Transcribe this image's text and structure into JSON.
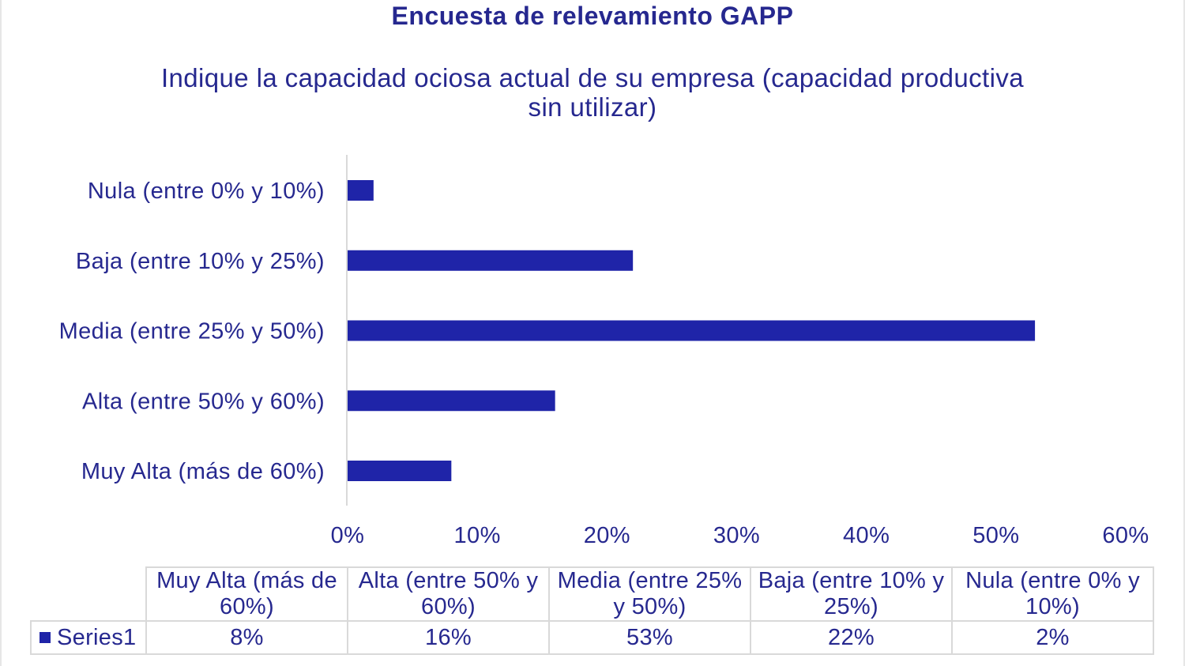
{
  "colors": {
    "accent": "#26288f",
    "bar": "#1f24a8",
    "grid": "#d9d9d9"
  },
  "chart_data": {
    "type": "bar",
    "orientation": "horizontal",
    "title": "Encuesta de relevamiento GAPP",
    "subtitle": "Indique la capacidad ociosa actual de su empresa (capacidad productiva sin utilizar)",
    "categories": [
      "Nula (entre 0% y 10%)",
      "Baja (entre 10% y 25%)",
      "Media (entre 25% y 50%)",
      "Alta (entre 50% y 60%)",
      "Muy Alta (más de 60%)"
    ],
    "series": [
      {
        "name": "Series1",
        "values": [
          2,
          22,
          53,
          16,
          8
        ]
      }
    ],
    "xlim": [
      0,
      60
    ],
    "xticks": [
      "0%",
      "10%",
      "20%",
      "30%",
      "40%",
      "50%",
      "60%"
    ],
    "grid": false,
    "legend": "data-table",
    "data_table": {
      "columns": [
        "Muy Alta (más de 60%)",
        "Alta (entre 50% y 60%)",
        "Media (entre 25% y 50%)",
        "Baja (entre 10% y 25%)",
        "Nula (entre 0% y 10%)"
      ],
      "series_name": "Series1",
      "values": [
        "8%",
        "16%",
        "53%",
        "22%",
        "2%"
      ]
    }
  }
}
